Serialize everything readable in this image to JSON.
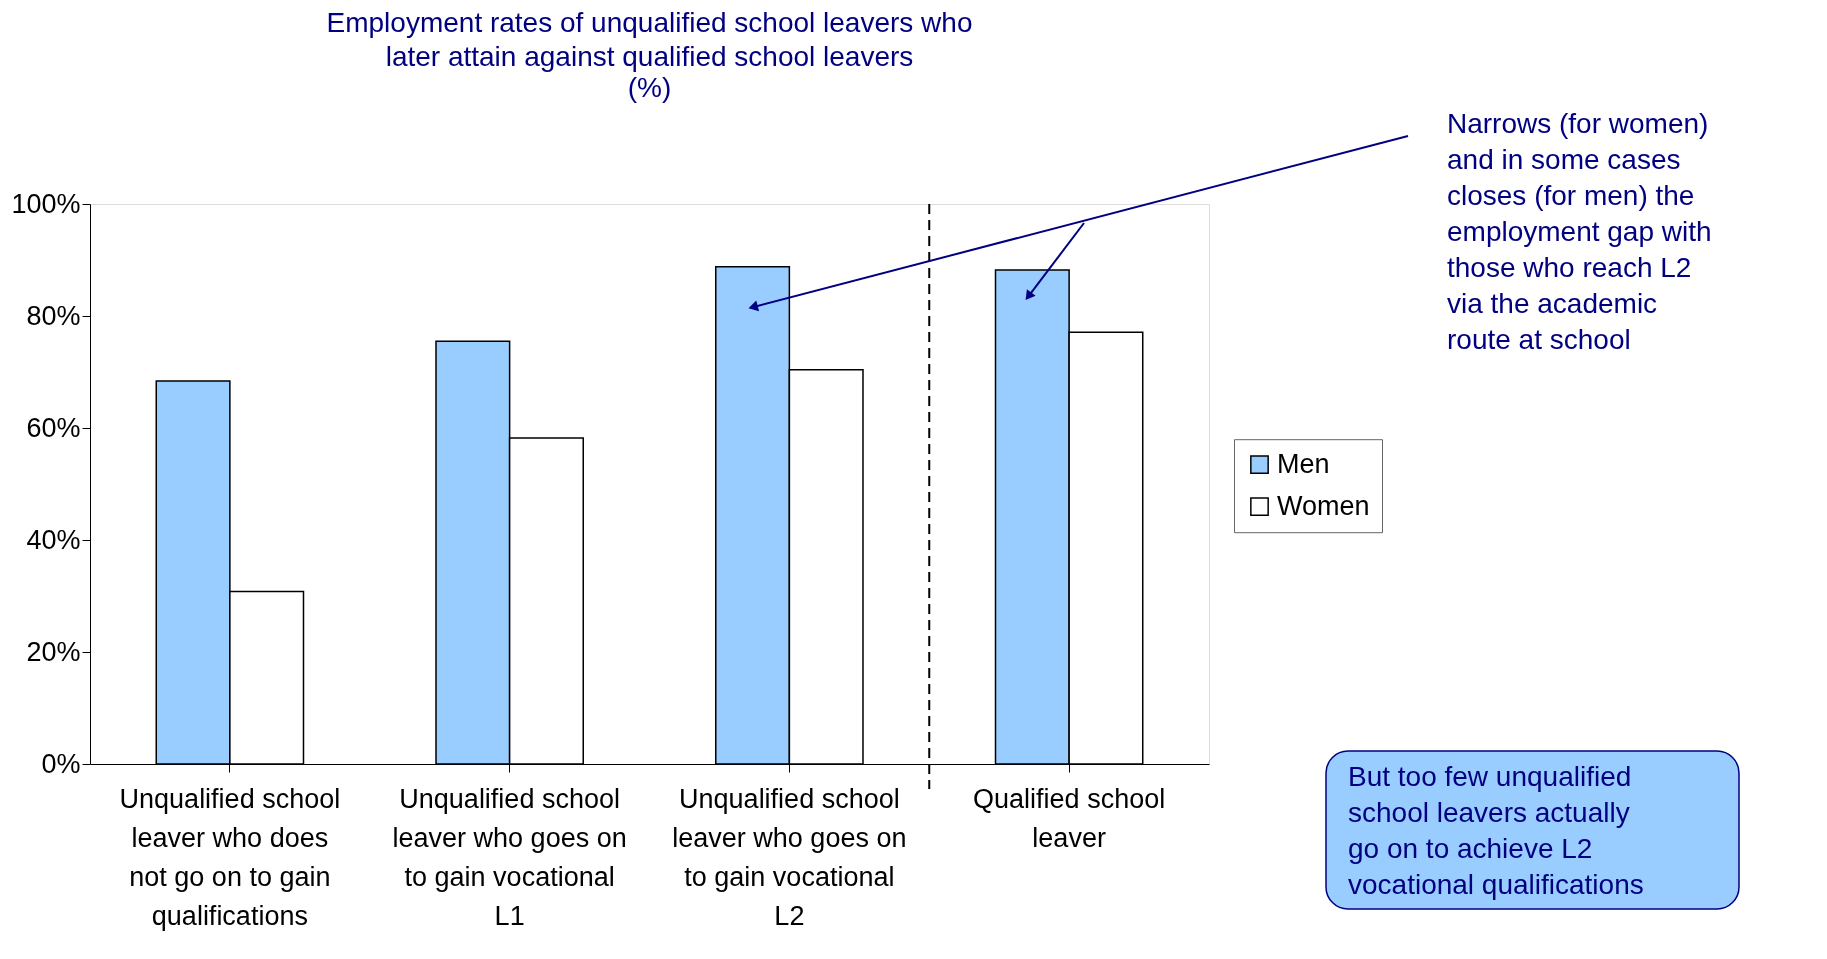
{
  "chart_data": {
    "type": "bar",
    "title": [
      "Employment rates of unqualified school leavers who",
      "later attain against qualified school leavers"
    ],
    "subtitle": "(%)",
    "categories": [
      "Unqualified school leaver who does not go on to gain qualifications",
      "Unqualified school leaver who goes on to gain vocational L1",
      "Unqualified school leaver who goes on to gain vocational L2",
      "Qualified school leaver"
    ],
    "series": [
      {
        "name": "Men",
        "color": "#99ccff",
        "values": [
          68.4,
          75.5,
          88.8,
          88.2
        ]
      },
      {
        "name": "Women",
        "color": "#ffffff",
        "values": [
          30.8,
          58.2,
          70.4,
          77.1
        ]
      }
    ],
    "ylim": [
      0,
      100
    ],
    "yticks": [
      {
        "value": 0,
        "label": "0%"
      },
      {
        "value": 20,
        "label": "20%"
      },
      {
        "value": 40,
        "label": "40%"
      },
      {
        "value": 60,
        "label": "60%"
      },
      {
        "value": 80,
        "label": "80%"
      },
      {
        "value": 100,
        "label": "100%"
      }
    ],
    "grid": false,
    "legend": "right",
    "annotations": [
      "Narrows (for women) and in some cases closes (for men) the employment gap with those who reach L2 via the academic route at school",
      "But too few unqualified school leavers actually go on to achieve L2 vocational qualifications"
    ]
  }
}
